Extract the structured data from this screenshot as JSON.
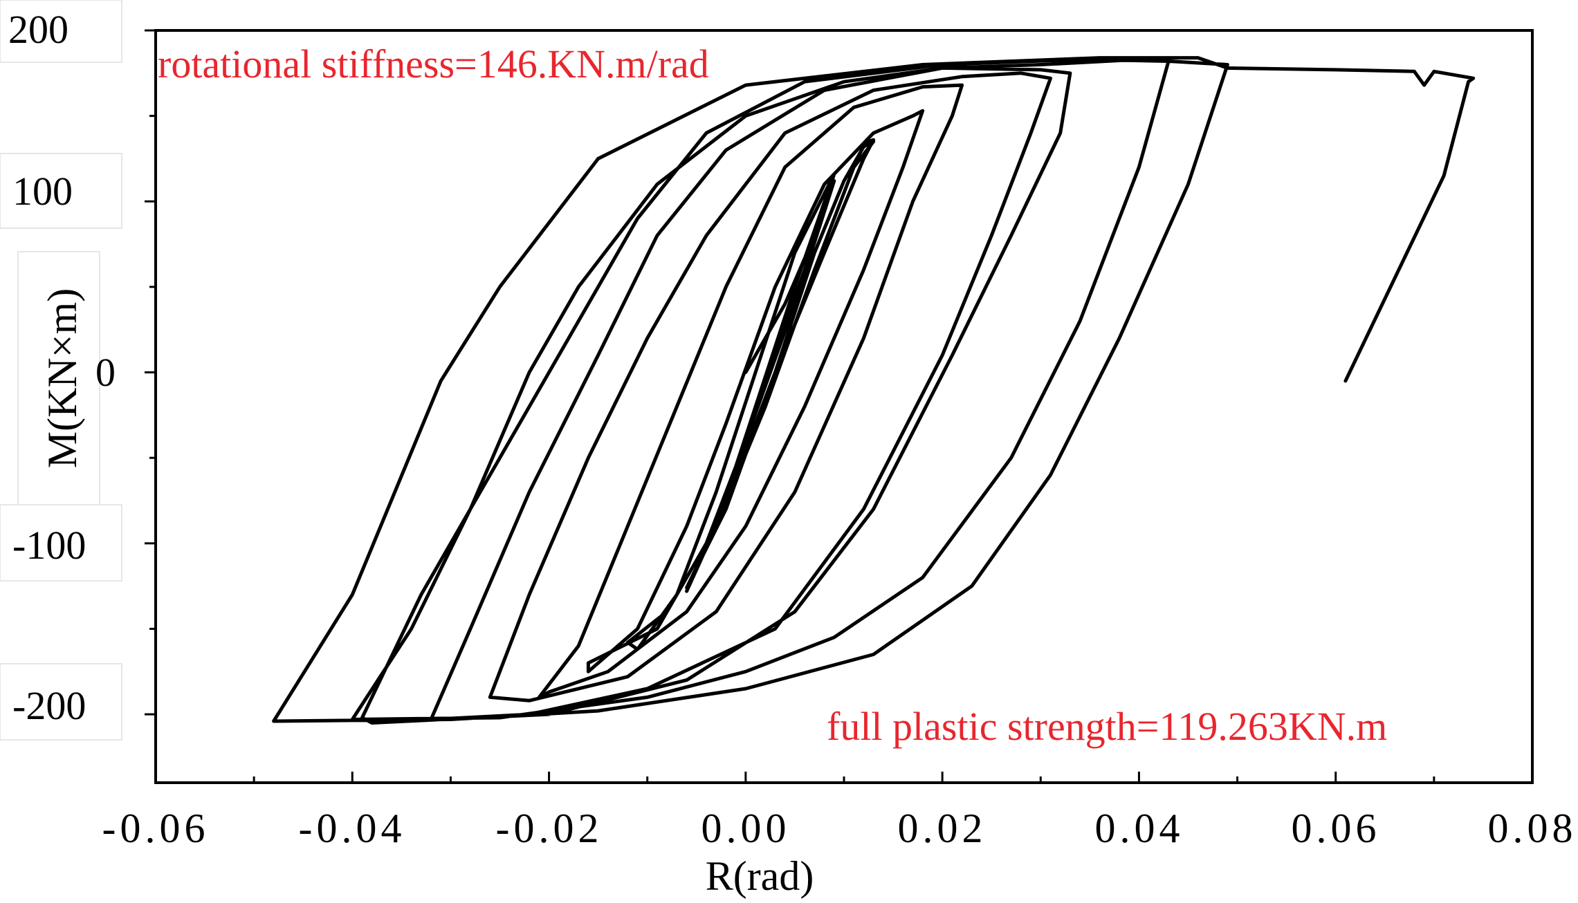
{
  "chart_data": {
    "type": "line",
    "title": "",
    "xlabel": "R(rad)",
    "ylabel": "M(KN×m)",
    "xlim": [
      -0.06,
      0.08
    ],
    "ylim": [
      -240,
      200
    ],
    "x_ticks": [
      -0.06,
      -0.04,
      -0.02,
      0.0,
      0.02,
      0.04,
      0.06,
      0.08
    ],
    "x_tick_labels": [
      "-0.06",
      "-0.04",
      "-0.02",
      "0.00",
      "0.02",
      "0.04",
      "0.06",
      "0.08"
    ],
    "y_ticks": [
      200,
      100,
      0,
      -100,
      -200
    ],
    "y_tick_labels": [
      "200",
      "100",
      "0",
      "-100",
      "-200"
    ],
    "grid": false,
    "legend": "none",
    "line_color": "#000000",
    "annotation_color": "#e8262e",
    "annotations": [
      {
        "text": "rotational stiffness=146.KN.m/rad",
        "position": "top-left"
      },
      {
        "text": "full plastic strength=119.263KN.m",
        "position": "bottom-right"
      }
    ],
    "series": [
      {
        "values": [
          [
            0.0,
            0
          ],
          [
            0.004,
            40
          ],
          [
            0.007,
            80
          ],
          [
            0.009,
            112
          ],
          [
            0.005,
            40
          ],
          [
            0.0,
            -40
          ],
          [
            -0.004,
            -100
          ],
          [
            -0.006,
            -128
          ],
          [
            -0.003,
            -90
          ],
          [
            0.001,
            -20
          ],
          [
            0.005,
            50
          ],
          [
            0.009,
            116
          ],
          [
            0.006,
            60
          ],
          [
            0.001,
            -20
          ],
          [
            -0.003,
            -90
          ],
          [
            -0.006,
            -126
          ],
          [
            -0.002,
            -80
          ],
          [
            0.003,
            0
          ],
          [
            0.007,
            70
          ],
          [
            0.01,
            112
          ],
          [
            0.012,
            132
          ],
          [
            0.013,
            135
          ],
          [
            0.011,
            120
          ],
          [
            0.007,
            60
          ],
          [
            0.002,
            -20
          ],
          [
            -0.003,
            -90
          ],
          [
            -0.008,
            -140
          ],
          [
            -0.012,
            -158
          ],
          [
            -0.011,
            -162
          ],
          [
            -0.007,
            -130
          ],
          [
            -0.003,
            -70
          ],
          [
            0.001,
            0
          ],
          [
            0.005,
            70
          ],
          [
            0.009,
            116
          ],
          [
            0.012,
            134
          ],
          [
            0.013,
            136
          ],
          [
            0.012,
            125
          ],
          [
            0.008,
            70
          ],
          [
            0.003,
            0
          ],
          [
            -0.003,
            -90
          ],
          [
            -0.009,
            -150
          ],
          [
            -0.016,
            -170
          ],
          [
            -0.016,
            -175
          ],
          [
            -0.011,
            -150
          ],
          [
            -0.006,
            -90
          ],
          [
            -0.002,
            -30
          ],
          [
            0.003,
            50
          ],
          [
            0.008,
            110
          ],
          [
            0.013,
            140
          ],
          [
            0.017,
            150
          ],
          [
            0.018,
            153
          ],
          [
            0.016,
            120
          ],
          [
            0.012,
            60
          ],
          [
            0.006,
            -20
          ],
          [
            0.0,
            -90
          ],
          [
            -0.006,
            -140
          ],
          [
            -0.014,
            -175
          ],
          [
            -0.02,
            -187
          ],
          [
            -0.021,
            -190
          ],
          [
            -0.017,
            -160
          ],
          [
            -0.012,
            -90
          ],
          [
            -0.007,
            -20
          ],
          [
            -0.002,
            50
          ],
          [
            0.004,
            120
          ],
          [
            0.011,
            155
          ],
          [
            0.018,
            167
          ],
          [
            0.022,
            168
          ],
          [
            0.021,
            150
          ],
          [
            0.017,
            100
          ],
          [
            0.012,
            20
          ],
          [
            0.005,
            -70
          ],
          [
            -0.003,
            -140
          ],
          [
            -0.012,
            -178
          ],
          [
            -0.022,
            -192
          ],
          [
            -0.026,
            -190
          ],
          [
            -0.022,
            -130
          ],
          [
            -0.016,
            -50
          ],
          [
            -0.01,
            20
          ],
          [
            -0.004,
            80
          ],
          [
            0.004,
            140
          ],
          [
            0.013,
            165
          ],
          [
            0.022,
            173
          ],
          [
            0.028,
            175
          ],
          [
            0.031,
            172
          ],
          [
            0.029,
            140
          ],
          [
            0.025,
            80
          ],
          [
            0.02,
            10
          ],
          [
            0.012,
            -80
          ],
          [
            0.003,
            -150
          ],
          [
            -0.01,
            -185
          ],
          [
            -0.022,
            -200
          ],
          [
            -0.032,
            -203
          ],
          [
            -0.028,
            -150
          ],
          [
            -0.022,
            -70
          ],
          [
            -0.015,
            10
          ],
          [
            -0.009,
            80
          ],
          [
            -0.002,
            130
          ],
          [
            0.008,
            165
          ],
          [
            0.02,
            178
          ],
          [
            0.03,
            177
          ],
          [
            0.033,
            175
          ],
          [
            0.032,
            140
          ],
          [
            0.027,
            80
          ],
          [
            0.021,
            10
          ],
          [
            0.013,
            -80
          ],
          [
            0.005,
            -140
          ],
          [
            -0.006,
            -180
          ],
          [
            -0.02,
            -200
          ],
          [
            -0.038,
            -205
          ],
          [
            -0.039,
            -202
          ],
          [
            -0.033,
            -130
          ],
          [
            -0.025,
            -50
          ],
          [
            -0.018,
            20
          ],
          [
            -0.011,
            90
          ],
          [
            -0.004,
            140
          ],
          [
            0.006,
            170
          ],
          [
            0.02,
            180
          ],
          [
            0.034,
            183
          ],
          [
            0.043,
            182
          ],
          [
            0.04,
            120
          ],
          [
            0.034,
            30
          ],
          [
            0.027,
            -50
          ],
          [
            0.018,
            -120
          ],
          [
            0.009,
            -155
          ],
          [
            0.0,
            -175
          ],
          [
            -0.01,
            -190
          ],
          [
            -0.025,
            -202
          ],
          [
            -0.04,
            -203
          ],
          [
            -0.034,
            -150
          ],
          [
            -0.028,
            -80
          ],
          [
            -0.022,
            0
          ],
          [
            -0.017,
            50
          ],
          [
            -0.009,
            110
          ],
          [
            0.0,
            150
          ],
          [
            0.01,
            170
          ],
          [
            0.02,
            178
          ],
          [
            0.03,
            180
          ],
          [
            0.04,
            183
          ],
          [
            0.049,
            180
          ],
          [
            0.045,
            110
          ],
          [
            0.038,
            20
          ],
          [
            0.031,
            -60
          ],
          [
            0.023,
            -125
          ],
          [
            0.013,
            -165
          ],
          [
            0.0,
            -185
          ],
          [
            -0.015,
            -198
          ],
          [
            -0.03,
            -203
          ],
          [
            -0.048,
            -204
          ],
          [
            -0.04,
            -130
          ],
          [
            -0.031,
            -5
          ],
          [
            -0.025,
            50
          ],
          [
            -0.015,
            125
          ],
          [
            0.0,
            168
          ],
          [
            0.018,
            180
          ],
          [
            0.036,
            184
          ],
          [
            0.046,
            184
          ],
          [
            0.049,
            178
          ],
          [
            0.06,
            177
          ],
          [
            0.068,
            176
          ],
          [
            0.069,
            168
          ],
          [
            0.07,
            176
          ],
          [
            0.074,
            172
          ],
          [
            0.0735,
            170
          ],
          [
            0.071,
            115
          ],
          [
            0.061,
            -5
          ]
        ]
      }
    ]
  }
}
